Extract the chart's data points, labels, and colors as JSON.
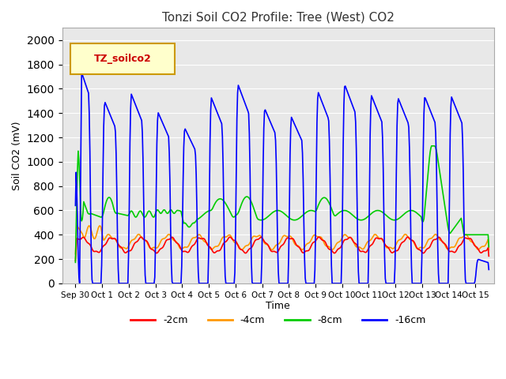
{
  "title": "Tonzi Soil CO2 Profile: Tree (West) CO2",
  "ylabel": "Soil CO2 (mV)",
  "xlabel": "Time",
  "legend_label": "TZ_soilco2",
  "ylim": [
    0,
    2100
  ],
  "yticks": [
    0,
    200,
    400,
    600,
    800,
    1000,
    1200,
    1400,
    1600,
    1800,
    2000
  ],
  "xtick_positions": [
    0,
    1,
    2,
    3,
    4,
    5,
    6,
    7,
    8,
    9,
    10,
    11,
    12,
    13,
    14,
    15
  ],
  "xtick_labels": [
    "Sep 30",
    "Oct 1",
    "Oct 2",
    "Oct 3",
    "Oct 4",
    "Oct 5",
    "Oct 6",
    "Oct 7",
    "Oct 8",
    "Oct 9",
    "Oct 10",
    "Oct 11",
    "Oct 12",
    "Oct 13",
    "Oct 14",
    "Oct 15"
  ],
  "colors": {
    "2cm": "#ff0000",
    "4cm": "#ff9900",
    "8cm": "#00cc00",
    "16cm": "#0000ff"
  },
  "legend_entries": [
    {
      "label": "-2cm",
      "color": "#ff0000"
    },
    {
      "label": "-4cm",
      "color": "#ff9900"
    },
    {
      "label": "-8cm",
      "color": "#00cc00"
    },
    {
      "label": "-16cm",
      "color": "#0000ff"
    }
  ],
  "bg_color": "#e8e8e8",
  "title_color": "#333333",
  "legend_box_color": "#ffffcc",
  "legend_box_edge": "#cc9900",
  "xlim": [
    -0.5,
    15.7
  ]
}
